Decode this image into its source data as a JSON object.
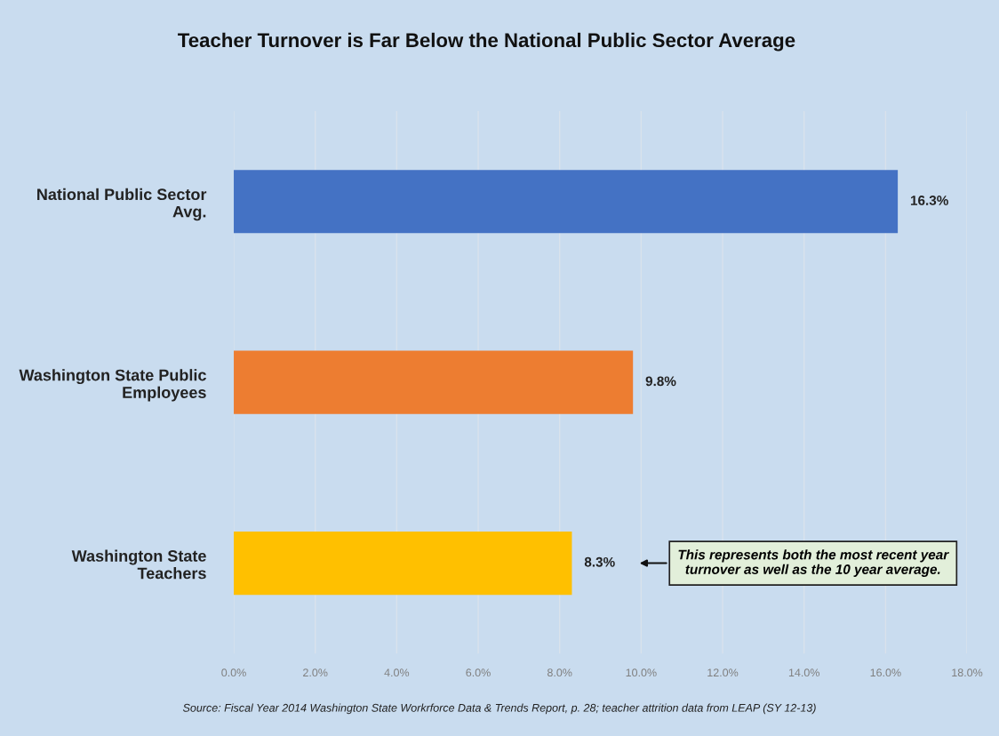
{
  "chart_data": {
    "type": "bar",
    "orientation": "horizontal",
    "title": "Teacher Turnover is Far Below the National Public Sector Average",
    "categories": [
      "National Public Sector Avg.",
      "Washington State Public Employees",
      "Washington State Teachers"
    ],
    "values": [
      16.3,
      9.8,
      8.3
    ],
    "colors": [
      "#4472c4",
      "#ed7d31",
      "#ffc000"
    ],
    "value_labels": [
      "16.3%",
      "9.8%",
      "8.3%"
    ],
    "xlim": [
      0,
      18
    ],
    "xticks": [
      {
        "value": 0,
        "label": "0.0%"
      },
      {
        "value": 2,
        "label": "2.0%"
      },
      {
        "value": 4,
        "label": "4.0%"
      },
      {
        "value": 6,
        "label": "6.0%"
      },
      {
        "value": 8,
        "label": "8.0%"
      },
      {
        "value": 10,
        "label": "10.0%"
      },
      {
        "value": 12,
        "label": "12.0%"
      },
      {
        "value": 14,
        "label": "14.0%"
      },
      {
        "value": 16,
        "label": "16.0%"
      },
      {
        "value": 18,
        "label": "18.0%"
      }
    ],
    "grid": "x",
    "annotations": [
      "This represents both the most recent year\nturnover as well as the 10 year average.",
      "Source: Fiscal Year 2014 Washington State Workrforce Data & Trends Report, p. 28; teacher attrition data from LEAP (SY 12-13)"
    ]
  }
}
